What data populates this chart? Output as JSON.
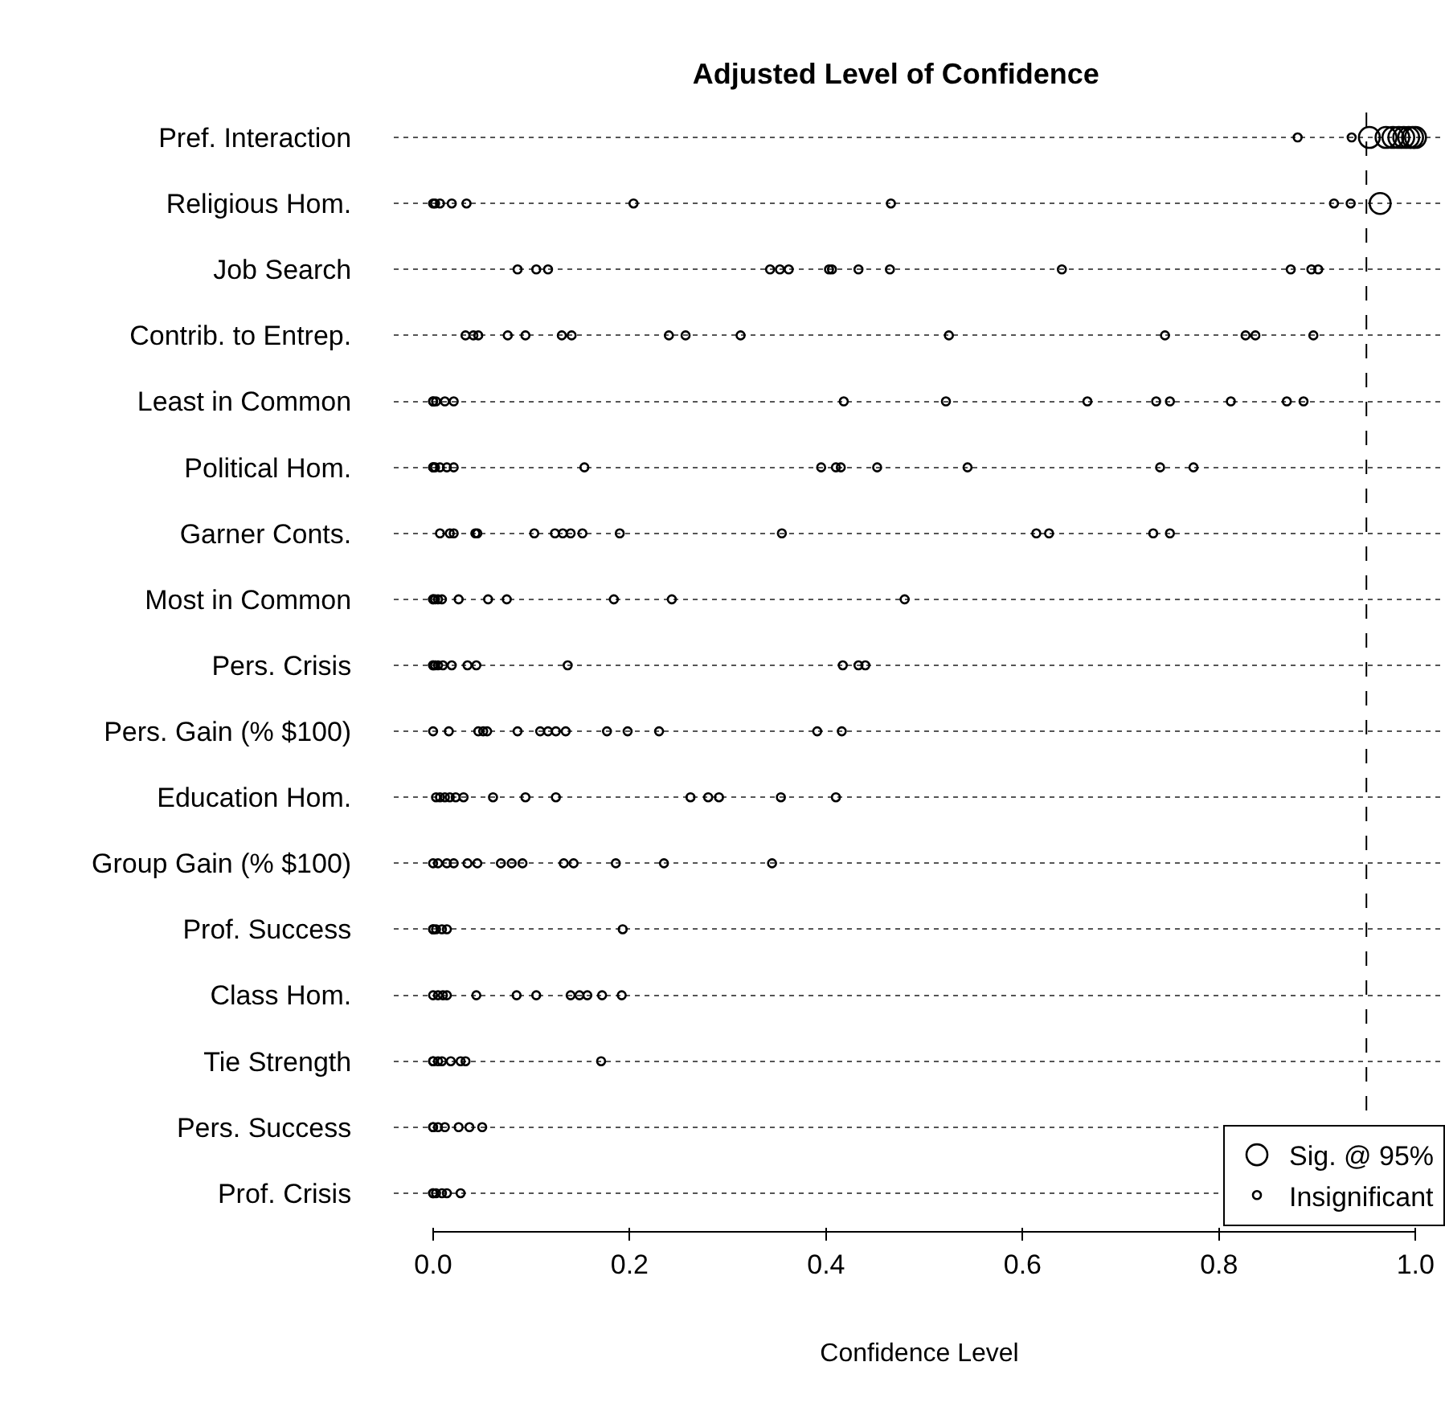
{
  "chart_data": {
    "type": "scatter",
    "orientation": "horizontal",
    "title": "Adjusted Level of Confidence",
    "xlabel": "Confidence Level",
    "categories": [
      "Pref. Interaction",
      "Religious Hom.",
      "Job Search",
      "Contrib. to Entrep.",
      "Least in Common",
      "Political Hom.",
      "Garner Conts.",
      "Most in Common",
      "Pers. Crisis",
      "Pers. Gain (% $100)",
      "Education Hom.",
      "Group Gain (% $100)",
      "Prof. Success",
      "Class Hom.",
      "Tie Strength",
      "Pers. Success",
      "Prof. Crisis"
    ],
    "xlim": [
      -0.04,
      1.03
    ],
    "xticks": [
      {
        "value": 0,
        "label": "0.0"
      },
      {
        "value": 0.2,
        "label": "0.2"
      },
      {
        "value": 0.4,
        "label": "0.4"
      },
      {
        "value": 0.6,
        "label": "0.6"
      },
      {
        "value": 0.8,
        "label": "0.8"
      },
      {
        "value": 1,
        "label": "1.0"
      }
    ],
    "grid": "y",
    "marker": "circle",
    "legend": "bottom right",
    "ref_lines": [
      {
        "axis": "x",
        "value": 0.95,
        "line_style": "dashed"
      }
    ],
    "series": [
      {
        "name": "Sig. @ 95%",
        "color": "#000000",
        "x": [
          "Pref. Interaction",
          "Pref. Interaction",
          "Pref. Interaction",
          "Pref. Interaction",
          "Pref. Interaction",
          "Pref. Interaction",
          "Pref. Interaction",
          "Pref. Interaction",
          "Religious Hom."
        ],
        "values": [
          0.953,
          0.97,
          0.977,
          0.983,
          0.988,
          0.993,
          0.997,
          1.0,
          0.964
        ]
      },
      {
        "name": "Insignificant",
        "color": "#000000",
        "x": [
          "Pref. Interaction",
          "Pref. Interaction",
          "Religious Hom.",
          "Religious Hom.",
          "Religious Hom.",
          "Religious Hom.",
          "Religious Hom.",
          "Religious Hom.",
          "Religious Hom.",
          "Religious Hom.",
          "Religious Hom.",
          "Job Search",
          "Job Search",
          "Job Search",
          "Job Search",
          "Job Search",
          "Job Search",
          "Job Search",
          "Job Search",
          "Job Search",
          "Job Search",
          "Job Search",
          "Job Search",
          "Job Search",
          "Job Search",
          "Contrib. to Entrep.",
          "Contrib. to Entrep.",
          "Contrib. to Entrep.",
          "Contrib. to Entrep.",
          "Contrib. to Entrep.",
          "Contrib. to Entrep.",
          "Contrib. to Entrep.",
          "Contrib. to Entrep.",
          "Contrib. to Entrep.",
          "Contrib. to Entrep.",
          "Contrib. to Entrep.",
          "Contrib. to Entrep.",
          "Contrib. to Entrep.",
          "Contrib. to Entrep.",
          "Contrib. to Entrep.",
          "Least in Common",
          "Least in Common",
          "Least in Common",
          "Least in Common",
          "Least in Common",
          "Least in Common",
          "Least in Common",
          "Least in Common",
          "Least in Common",
          "Least in Common",
          "Least in Common",
          "Least in Common",
          "Least in Common",
          "Political Hom.",
          "Political Hom.",
          "Political Hom.",
          "Political Hom.",
          "Political Hom.",
          "Political Hom.",
          "Political Hom.",
          "Political Hom.",
          "Political Hom.",
          "Political Hom.",
          "Political Hom.",
          "Political Hom.",
          "Political Hom.",
          "Political Hom.",
          "Garner Conts.",
          "Garner Conts.",
          "Garner Conts.",
          "Garner Conts.",
          "Garner Conts.",
          "Garner Conts.",
          "Garner Conts.",
          "Garner Conts.",
          "Garner Conts.",
          "Garner Conts.",
          "Garner Conts.",
          "Garner Conts.",
          "Garner Conts.",
          "Garner Conts.",
          "Garner Conts.",
          "Garner Conts.",
          "Most in Common",
          "Most in Common",
          "Most in Common",
          "Most in Common",
          "Most in Common",
          "Most in Common",
          "Most in Common",
          "Most in Common",
          "Most in Common",
          "Most in Common",
          "Most in Common",
          "Pers. Crisis",
          "Pers. Crisis",
          "Pers. Crisis",
          "Pers. Crisis",
          "Pers. Crisis",
          "Pers. Crisis",
          "Pers. Crisis",
          "Pers. Crisis",
          "Pers. Crisis",
          "Pers. Crisis",
          "Pers. Crisis",
          "Pers. Crisis",
          "Pers. Gain (% $100)",
          "Pers. Gain (% $100)",
          "Pers. Gain (% $100)",
          "Pers. Gain (% $100)",
          "Pers. Gain (% $100)",
          "Pers. Gain (% $100)",
          "Pers. Gain (% $100)",
          "Pers. Gain (% $100)",
          "Pers. Gain (% $100)",
          "Pers. Gain (% $100)",
          "Pers. Gain (% $100)",
          "Pers. Gain (% $100)",
          "Pers. Gain (% $100)",
          "Pers. Gain (% $100)",
          "Pers. Gain (% $100)",
          "Education Hom.",
          "Education Hom.",
          "Education Hom.",
          "Education Hom.",
          "Education Hom.",
          "Education Hom.",
          "Education Hom.",
          "Education Hom.",
          "Education Hom.",
          "Education Hom.",
          "Education Hom.",
          "Education Hom.",
          "Education Hom.",
          "Education Hom.",
          "Group Gain (% $100)",
          "Group Gain (% $100)",
          "Group Gain (% $100)",
          "Group Gain (% $100)",
          "Group Gain (% $100)",
          "Group Gain (% $100)",
          "Group Gain (% $100)",
          "Group Gain (% $100)",
          "Group Gain (% $100)",
          "Group Gain (% $100)",
          "Group Gain (% $100)",
          "Group Gain (% $100)",
          "Group Gain (% $100)",
          "Group Gain (% $100)",
          "Prof. Success",
          "Prof. Success",
          "Prof. Success",
          "Prof. Success",
          "Prof. Success",
          "Prof. Success",
          "Class Hom.",
          "Class Hom.",
          "Class Hom.",
          "Class Hom.",
          "Class Hom.",
          "Class Hom.",
          "Class Hom.",
          "Class Hom.",
          "Class Hom.",
          "Class Hom.",
          "Class Hom.",
          "Class Hom.",
          "Tie Strength",
          "Tie Strength",
          "Tie Strength",
          "Tie Strength",
          "Tie Strength",
          "Tie Strength",
          "Tie Strength",
          "Tie Strength",
          "Pers. Success",
          "Pers. Success",
          "Pers. Success",
          "Pers. Success",
          "Pers. Success",
          "Pers. Success",
          "Pers. Success",
          "Prof. Crisis",
          "Prof. Crisis",
          "Prof. Crisis",
          "Prof. Crisis",
          "Prof. Crisis",
          "Prof. Crisis"
        ],
        "values": [
          0.88,
          0.935,
          0.0,
          0.002,
          0.007,
          0.019,
          0.034,
          0.204,
          0.466,
          0.917,
          0.934,
          0.086,
          0.105,
          0.117,
          0.343,
          0.353,
          0.362,
          0.403,
          0.406,
          0.433,
          0.465,
          0.64,
          0.873,
          0.894,
          0.901,
          0.033,
          0.041,
          0.046,
          0.076,
          0.094,
          0.131,
          0.141,
          0.24,
          0.257,
          0.313,
          0.525,
          0.745,
          0.827,
          0.837,
          0.896,
          0.0,
          0.0,
          0.003,
          0.012,
          0.021,
          0.418,
          0.522,
          0.666,
          0.736,
          0.75,
          0.812,
          0.869,
          0.886,
          0.0,
          0.0,
          0.002,
          0.007,
          0.014,
          0.021,
          0.154,
          0.395,
          0.41,
          0.415,
          0.452,
          0.544,
          0.74,
          0.774,
          0.007,
          0.017,
          0.021,
          0.043,
          0.045,
          0.103,
          0.124,
          0.132,
          0.14,
          0.152,
          0.19,
          0.355,
          0.614,
          0.627,
          0.733,
          0.75,
          0.0,
          0.0,
          0.002,
          0.005,
          0.009,
          0.026,
          0.056,
          0.075,
          0.184,
          0.243,
          0.48,
          0.0,
          0.0,
          0.002,
          0.005,
          0.01,
          0.019,
          0.035,
          0.044,
          0.137,
          0.417,
          0.433,
          0.44,
          0.0,
          0.016,
          0.046,
          0.051,
          0.055,
          0.086,
          0.109,
          0.117,
          0.125,
          0.135,
          0.177,
          0.198,
          0.23,
          0.391,
          0.416,
          0.003,
          0.007,
          0.012,
          0.017,
          0.023,
          0.031,
          0.061,
          0.094,
          0.125,
          0.262,
          0.28,
          0.291,
          0.354,
          0.41,
          0.0,
          0.005,
          0.014,
          0.021,
          0.035,
          0.045,
          0.069,
          0.08,
          0.091,
          0.133,
          0.143,
          0.186,
          0.235,
          0.345,
          0.0,
          0.0,
          0.003,
          0.009,
          0.014,
          0.193,
          0.0,
          0.005,
          0.01,
          0.014,
          0.044,
          0.085,
          0.105,
          0.14,
          0.149,
          0.157,
          0.172,
          0.192,
          0.0,
          0.0,
          0.005,
          0.009,
          0.018,
          0.028,
          0.033,
          0.171,
          0.0,
          0.0,
          0.005,
          0.012,
          0.026,
          0.037,
          0.05,
          0.0,
          0.0,
          0.003,
          0.009,
          0.014,
          0.028
        ]
      }
    ]
  }
}
